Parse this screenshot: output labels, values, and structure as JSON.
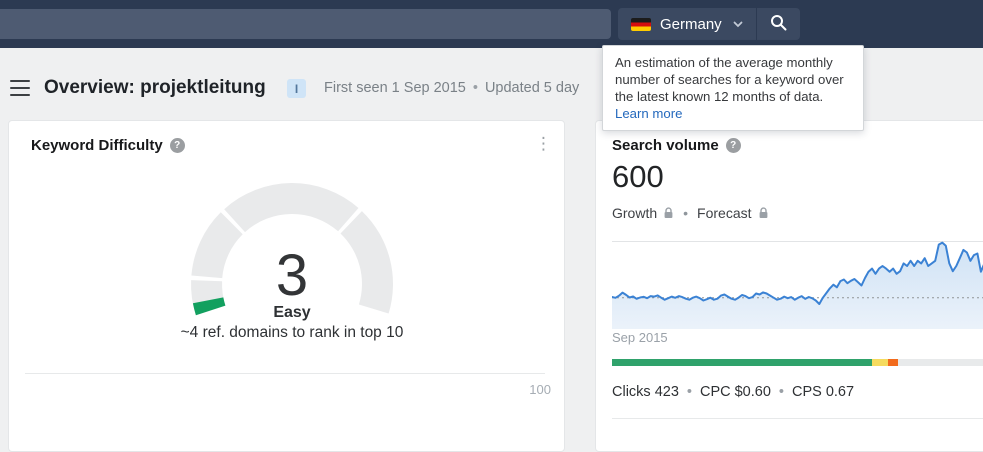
{
  "colors": {
    "topbar_bg": "#2c3a52",
    "topbar_input_bg": "#4e5b72",
    "topbar_button_bg": "#3b4961",
    "accent_blue": "#3b82d4",
    "chart_fill_top": "#cfe2f5",
    "chart_fill_bottom": "#ebf2fa",
    "avg_line_gray": "#8f9396",
    "gridline_gray": "#e2e4e6",
    "gauge_track": "#e9eaeb",
    "gauge_green": "#12a05f",
    "bar_green": "#2fa26b",
    "bar_yellow": "#f5db5f",
    "bar_orange": "#f26b1d",
    "bar_gray": "#e8eaeb",
    "link_blue": "#2469bd"
  },
  "icons": {
    "menu": "hamburger",
    "flag": "germany-flag",
    "chevron": "chevron-down",
    "search": "magnifier",
    "help": "?",
    "kebab": "⋮",
    "lock": "padlock",
    "bullet": "•",
    "info_badge": "I"
  },
  "topbar": {
    "country_label": "Germany"
  },
  "tooltip": {
    "text": "An estimation of the average monthly number of searches for a keyword over the latest known 12 months of data.",
    "link_label": "Learn more"
  },
  "header": {
    "title": "Overview: projektleitung",
    "first_seen": "First seen 1 Sep 2015",
    "updated": "Updated 5 day"
  },
  "difficulty_card": {
    "title": "Keyword Difficulty",
    "value": "3",
    "label": "Easy",
    "note": "~4 ref. domains to rank in top 10",
    "axis_max": "100"
  },
  "volume_card": {
    "title": "Search volume",
    "value": "600",
    "growth_label": "Growth",
    "forecast_label": "Forecast",
    "x_first_label": "Sep 2015",
    "metrics": [
      "Clicks 423",
      "CPC $0.60",
      "CPS 0.67"
    ]
  },
  "chart_data": [
    {
      "name": "difficulty_gauge",
      "type": "gauge",
      "value": 3,
      "max": 100,
      "label": "Easy",
      "note": "~4 ref. domains to rank in top 10",
      "segments": [
        {
          "from": 0,
          "to": 10
        },
        {
          "from": 10,
          "to": 30
        },
        {
          "from": 30,
          "to": 70
        },
        {
          "from": 70,
          "to": 100
        }
      ],
      "start_angle": 252,
      "sweep": 215
    },
    {
      "name": "volume_trend",
      "type": "area",
      "x_start_label": "Sep 2015",
      "average_line": 600,
      "ylim": [
        0,
        1690
      ],
      "values": [
        615,
        600,
        640,
        700,
        655,
        605,
        625,
        580,
        605,
        618,
        592,
        632,
        622,
        645,
        602,
        562,
        592,
        622,
        600,
        632,
        612,
        582,
        562,
        602,
        622,
        592,
        548,
        572,
        602,
        562,
        582,
        642,
        662,
        622,
        582,
        562,
        602,
        652,
        632,
        592,
        612,
        682,
        662,
        702,
        682,
        642,
        602,
        562,
        582,
        622,
        592,
        612,
        562,
        602,
        632,
        578,
        615,
        590,
        548,
        480,
        600,
        690,
        780,
        850,
        800,
        920,
        950,
        880,
        925,
        960,
        900,
        835,
        980,
        1100,
        1160,
        1060,
        1160,
        1210,
        1160,
        1100,
        1160,
        1060,
        1110,
        1260,
        1210,
        1310,
        1210,
        1310,
        1260,
        1360,
        1210,
        1260,
        1310,
        1620,
        1660,
        1600,
        1260,
        1110,
        1210,
        1360,
        1520,
        1470,
        1310,
        1420,
        1450,
        1100,
        1260,
        1420,
        1380,
        1050,
        1300,
        1350
      ]
    },
    {
      "name": "clicks_bar",
      "type": "stacked-bar",
      "segments": [
        {
          "color_key": "bar_green",
          "pct": 66.7
        },
        {
          "color_key": "bar_yellow",
          "pct": 4.1
        },
        {
          "color_key": "bar_orange",
          "pct": 2.6
        },
        {
          "color_key": "bar_gray",
          "pct": 26.6
        }
      ]
    }
  ]
}
